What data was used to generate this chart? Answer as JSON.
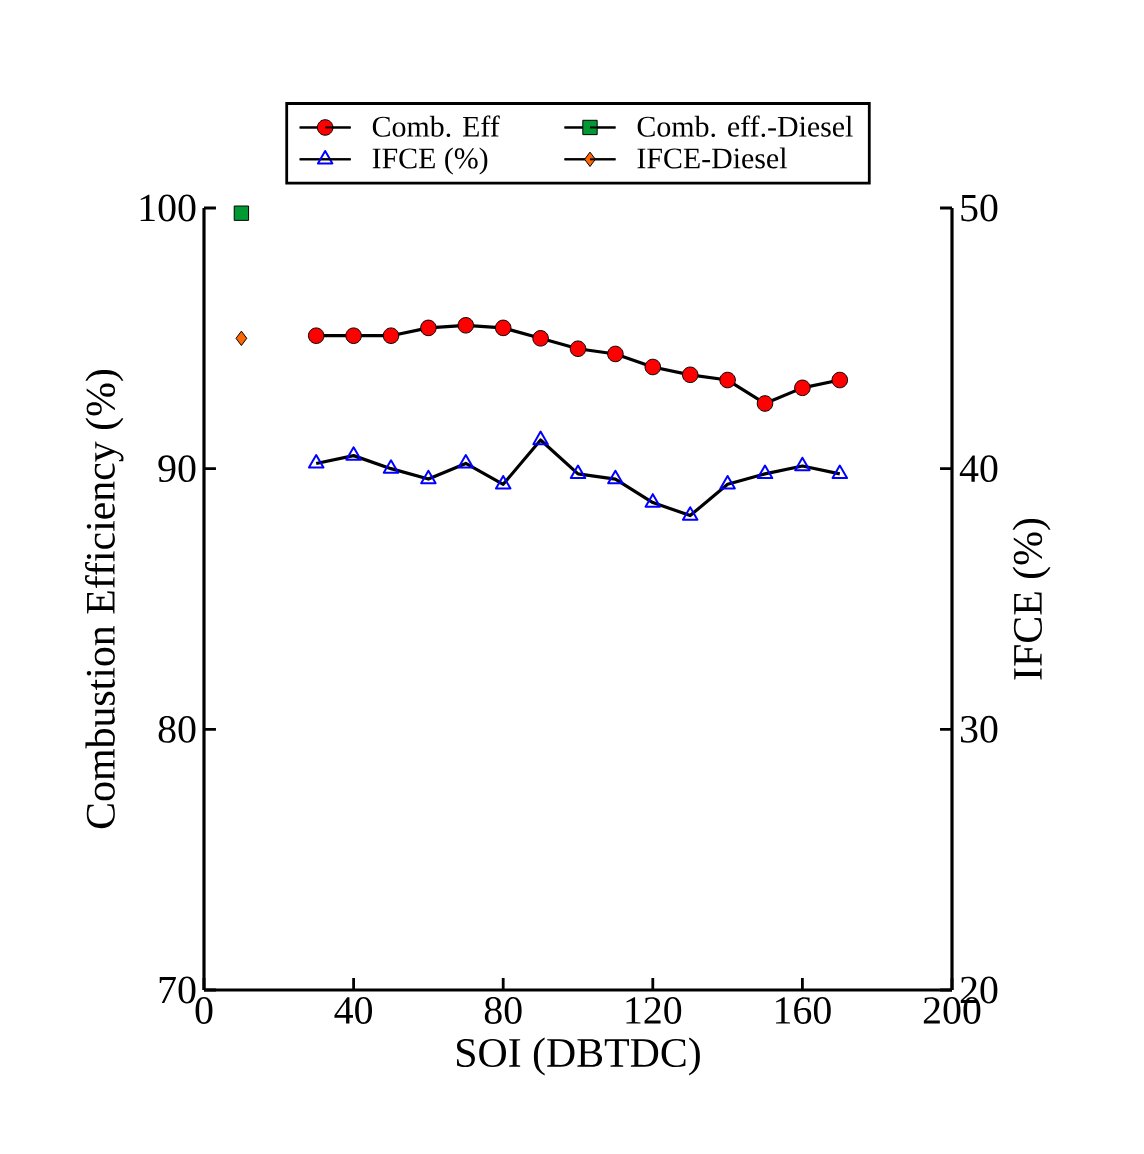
{
  "chart_data": {
    "type": "line",
    "xlabel": "SOI (DBTDC)",
    "ylabel": "Combustion Efficiency (%)",
    "y2label": "IFCE (%)",
    "xlim": [
      0,
      200
    ],
    "xticks": [
      0,
      40,
      80,
      120,
      160,
      200
    ],
    "ylim": [
      70,
      100
    ],
    "yticks": [
      70,
      80,
      90,
      100
    ],
    "y2lim": [
      20,
      50
    ],
    "y2ticks": [
      20,
      30,
      40,
      50
    ],
    "legend": "top",
    "grid": false,
    "series": [
      {
        "name": "Comb. Eff",
        "color": "#ff0000",
        "marker": "circle",
        "x": [
          30,
          40,
          50,
          60,
          70,
          80,
          90,
          100,
          110,
          120,
          130,
          140,
          150,
          160,
          170
        ],
        "values": [
          95.1,
          95.1,
          95.1,
          95.4,
          95.5,
          95.4,
          95.0,
          94.6,
          94.4,
          93.9,
          93.6,
          93.4,
          92.5,
          93.1,
          93.4
        ]
      },
      {
        "name": "Comb. eff.-Diesel",
        "color": "#009933",
        "marker": "square",
        "x": [
          10
        ],
        "values": [
          99.8
        ]
      },
      {
        "name": "IFCE (%)",
        "color": "#0000ff",
        "marker": "triangle",
        "axis": "y2",
        "x": [
          30,
          40,
          50,
          60,
          70,
          80,
          90,
          100,
          110,
          120,
          130,
          140,
          150,
          160,
          170
        ],
        "values": [
          40.2,
          40.5,
          40.0,
          39.6,
          40.2,
          39.4,
          41.1,
          39.8,
          39.6,
          38.7,
          38.2,
          39.4,
          39.8,
          40.1,
          39.8
        ]
      },
      {
        "name": "IFCE-Diesel",
        "color": "#ff6600",
        "marker": "diamond",
        "axis": "y2",
        "x": [
          10
        ],
        "values": [
          45.0
        ]
      }
    ]
  }
}
